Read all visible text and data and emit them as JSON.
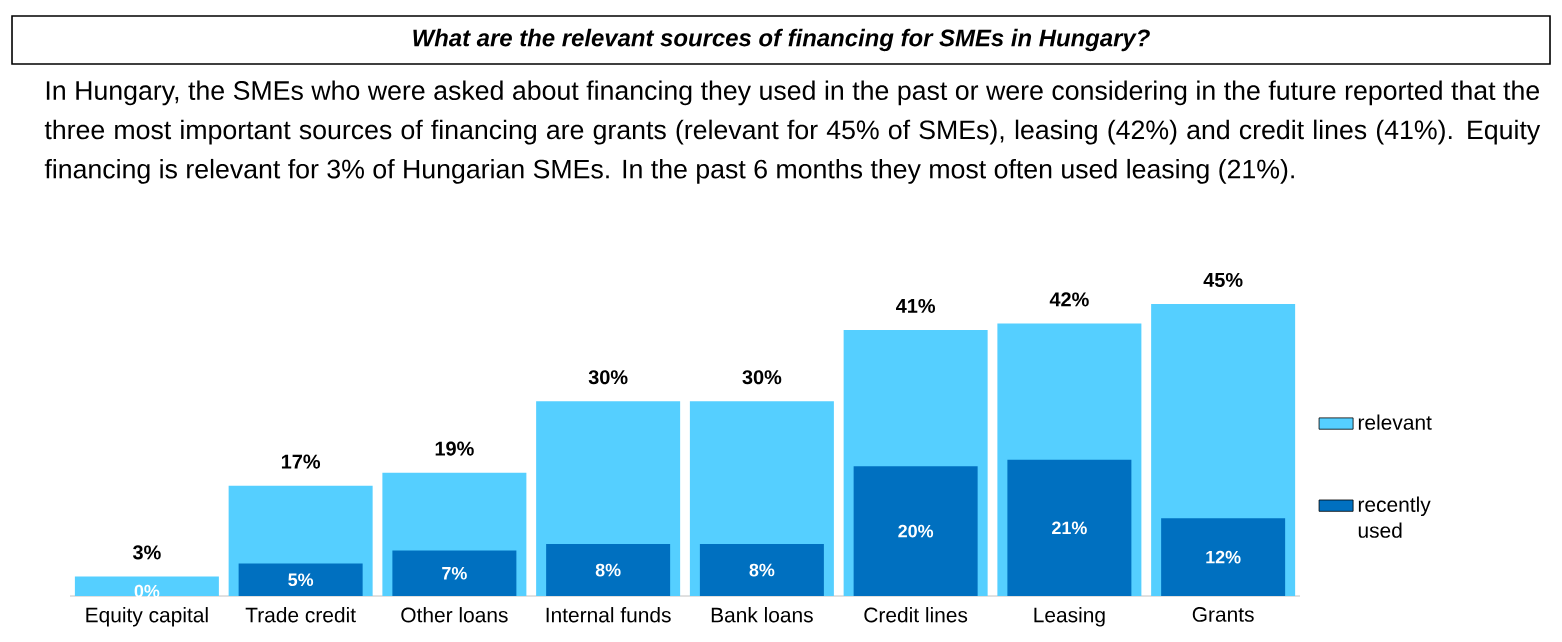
{
  "chart_data": {
    "type": "bar",
    "title": "What are the relevant sources of financing for SMEs in Hungary?",
    "subtitle": "In Hungary, the SMEs who were asked about financing they used in the past or were considering in the future reported that the three most important sources of financing are grants (relevant for 45% of SMEs), leasing (42%) and credit lines (41%). Equity financing is relevant for 3% of Hungarian SMEs. In the past 6 months they most often used leasing (21%).",
    "categories": [
      "Equity capital",
      "Trade credit",
      "Other loans",
      "Internal funds",
      "Bank loans",
      "Credit lines",
      "Leasing",
      "Grants"
    ],
    "series": [
      {
        "name": "relevant",
        "color": "#55cfff",
        "values": [
          3,
          17,
          19,
          30,
          30,
          41,
          42,
          45
        ],
        "value_labels": [
          "3%",
          "17%",
          "19%",
          "30%",
          "30%",
          "41%",
          "42%",
          "45%"
        ]
      },
      {
        "name": "recently used",
        "color": "#0070c0",
        "values": [
          0,
          5,
          7,
          8,
          8,
          20,
          21,
          12
        ],
        "value_labels": [
          "0%",
          "5%",
          "7%",
          "8%",
          "8%",
          "20%",
          "21%",
          "12%"
        ]
      }
    ],
    "legend": "right"
  }
}
